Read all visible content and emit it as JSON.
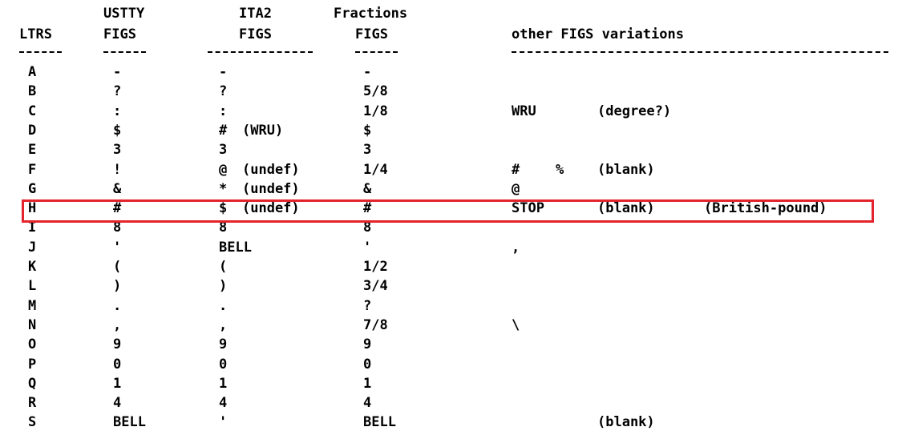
{
  "headers": {
    "ustty_top": "USTTY",
    "ita2_top": "ITA2",
    "fractions_top": "Fractions",
    "ltrs": "LTRS",
    "ustty_figs": "FIGS",
    "ita2_figs": "FIGS",
    "fractions_figs": "FIGS",
    "other": "other FIGS variations"
  },
  "rows": [
    {
      "ltr": "A",
      "ustty": "-",
      "ita2": "-",
      "ita2_note": "",
      "frac": "-",
      "o1": "",
      "o2": "",
      "o3": "",
      "o4": ""
    },
    {
      "ltr": "B",
      "ustty": "?",
      "ita2": "?",
      "ita2_note": "",
      "frac": "5/8",
      "o1": "",
      "o2": "",
      "o3": "",
      "o4": ""
    },
    {
      "ltr": "C",
      "ustty": ":",
      "ita2": ":",
      "ita2_note": "",
      "frac": "1/8",
      "o1": "WRU",
      "o2": "",
      "o3": "(degree?)",
      "o4": ""
    },
    {
      "ltr": "D",
      "ustty": "$",
      "ita2": "#",
      "ita2_note": "(WRU)",
      "frac": "$",
      "o1": "",
      "o2": "",
      "o3": "",
      "o4": ""
    },
    {
      "ltr": "E",
      "ustty": "3",
      "ita2": "3",
      "ita2_note": "",
      "frac": "3",
      "o1": "",
      "o2": "",
      "o3": "",
      "o4": ""
    },
    {
      "ltr": "F",
      "ustty": "!",
      "ita2": "@",
      "ita2_note": "(undef)",
      "frac": "1/4",
      "o1": "#",
      "o2": "%",
      "o3": "(blank)",
      "o4": ""
    },
    {
      "ltr": "G",
      "ustty": "&",
      "ita2": "*",
      "ita2_note": "(undef)",
      "frac": "&",
      "o1": "@",
      "o2": "",
      "o3": "",
      "o4": ""
    },
    {
      "ltr": "H",
      "ustty": "#",
      "ita2": "$",
      "ita2_note": "(undef)",
      "frac": "#",
      "o1": "STOP",
      "o2": "",
      "o3": "(blank)",
      "o4": "(British-pound)"
    },
    {
      "ltr": "I",
      "ustty": "8",
      "ita2": "8",
      "ita2_note": "",
      "frac": "8",
      "o1": "",
      "o2": "",
      "o3": "",
      "o4": ""
    },
    {
      "ltr": "J",
      "ustty": "'",
      "ita2": "BELL",
      "ita2_note": "",
      "frac": "'",
      "o1": ",",
      "o2": "",
      "o3": "",
      "o4": ""
    },
    {
      "ltr": "K",
      "ustty": "(",
      "ita2": "(",
      "ita2_note": "",
      "frac": "1/2",
      "o1": "",
      "o2": "",
      "o3": "",
      "o4": ""
    },
    {
      "ltr": "L",
      "ustty": ")",
      "ita2": ")",
      "ita2_note": "",
      "frac": "3/4",
      "o1": "",
      "o2": "",
      "o3": "",
      "o4": ""
    },
    {
      "ltr": "M",
      "ustty": ".",
      "ita2": ".",
      "ita2_note": "",
      "frac": "?",
      "o1": "",
      "o2": "",
      "o3": "",
      "o4": ""
    },
    {
      "ltr": "N",
      "ustty": ",",
      "ita2": ",",
      "ita2_note": "",
      "frac": "7/8",
      "o1": "\\",
      "o2": "",
      "o3": "",
      "o4": ""
    },
    {
      "ltr": "O",
      "ustty": "9",
      "ita2": "9",
      "ita2_note": "",
      "frac": "9",
      "o1": "",
      "o2": "",
      "o3": "",
      "o4": ""
    },
    {
      "ltr": "P",
      "ustty": "0",
      "ita2": "0",
      "ita2_note": "",
      "frac": "0",
      "o1": "",
      "o2": "",
      "o3": "",
      "o4": ""
    },
    {
      "ltr": "Q",
      "ustty": "1",
      "ita2": "1",
      "ita2_note": "",
      "frac": "1",
      "o1": "",
      "o2": "",
      "o3": "",
      "o4": ""
    },
    {
      "ltr": "R",
      "ustty": "4",
      "ita2": "4",
      "ita2_note": "",
      "frac": "4",
      "o1": "",
      "o2": "",
      "o3": "",
      "o4": ""
    },
    {
      "ltr": "S",
      "ustty": "BELL",
      "ita2": "'",
      "ita2_note": "",
      "frac": "BELL",
      "o1": "",
      "o2": "",
      "o3": "(blank)",
      "o4": ""
    }
  ],
  "highlight_color": "#e3242b"
}
